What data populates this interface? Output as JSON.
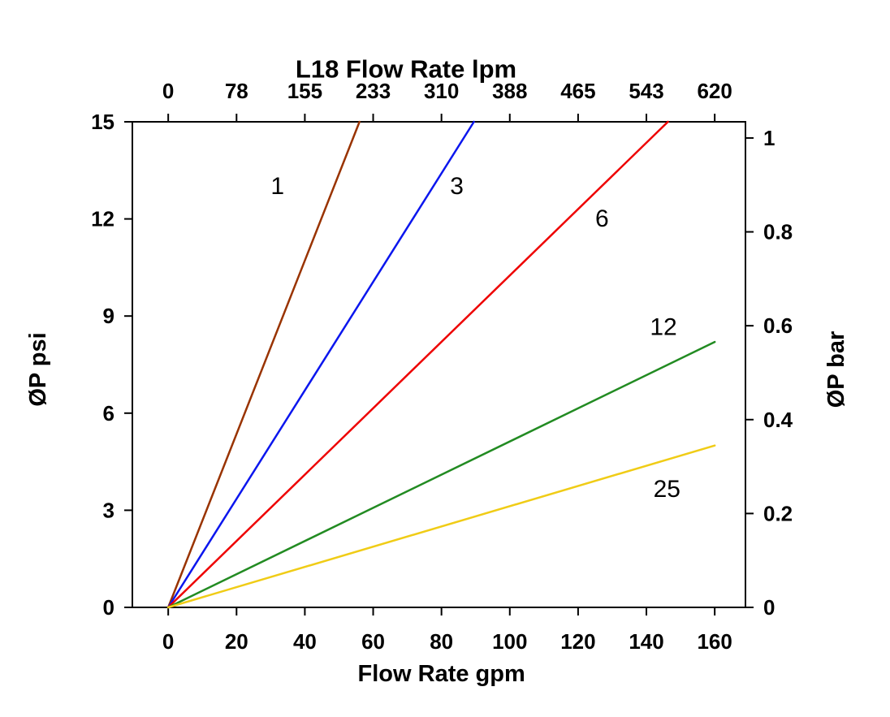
{
  "chart_data": {
    "type": "line",
    "title": "L18   Flow Rate lpm",
    "background": "#FFFFFF",
    "grid": false,
    "x_bottom": {
      "label": "Flow Rate gpm",
      "ticks": [
        0,
        20,
        40,
        60,
        80,
        100,
        120,
        140,
        160
      ],
      "range": [
        -10.5,
        169
      ]
    },
    "x_top": {
      "unit": "lpm",
      "tick_labels": [
        "0",
        "78",
        "155",
        "233",
        "310",
        "388",
        "465",
        "543",
        "620"
      ],
      "tick_positions_gpm": [
        0,
        20,
        40,
        60,
        80,
        100,
        120,
        140,
        160
      ]
    },
    "y_left": {
      "label": "ØP psi",
      "ticks": [
        0,
        3,
        6,
        9,
        12,
        15
      ],
      "range": [
        0,
        15
      ]
    },
    "y_right": {
      "label": "ØP bar",
      "tick_labels": [
        "0",
        "0.2",
        "0.4",
        "0.6",
        "0.8",
        "1"
      ],
      "tick_positions_psi": [
        0,
        2.9,
        5.8,
        8.7,
        11.6,
        14.5
      ]
    },
    "series": [
      {
        "name": "1",
        "color": "#993300",
        "points": [
          [
            0,
            0
          ],
          [
            56,
            15
          ]
        ],
        "label_pos": {
          "x": 32,
          "y": 13.0
        }
      },
      {
        "name": "3",
        "color": "#0B16EE",
        "points": [
          [
            0,
            0
          ],
          [
            89.5,
            15
          ]
        ],
        "label_pos": {
          "x": 84.5,
          "y": 13.0
        }
      },
      {
        "name": "6",
        "color": "#EE0000",
        "points": [
          [
            0,
            0
          ],
          [
            146.3,
            15
          ]
        ],
        "label_pos": {
          "x": 127,
          "y": 12.0
        }
      },
      {
        "name": "12",
        "color": "#228B22",
        "points": [
          [
            0,
            0
          ],
          [
            160,
            8.2
          ]
        ],
        "label_pos": {
          "x": 145,
          "y": 8.65
        }
      },
      {
        "name": "25",
        "color": "#F0CC16",
        "points": [
          [
            0,
            0
          ],
          [
            160,
            5.0
          ]
        ],
        "label_pos": {
          "x": 146,
          "y": 3.65
        }
      }
    ]
  }
}
